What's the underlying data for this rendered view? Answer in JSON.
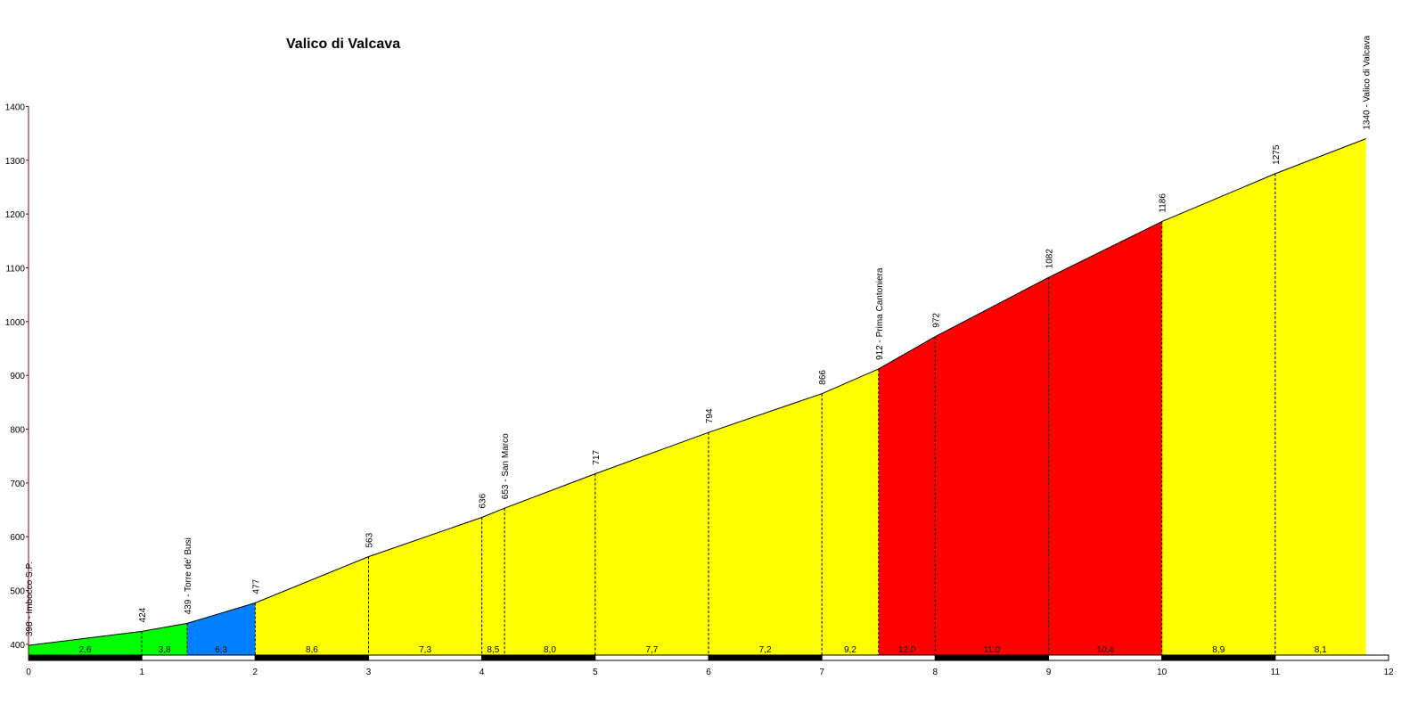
{
  "chart_data": {
    "type": "area",
    "title": "Valico di Valcava",
    "xlabel": "",
    "ylabel": "",
    "xlim": [
      0,
      12
    ],
    "ylim": [
      380,
      1400
    ],
    "x_ticks": [
      0,
      1,
      2,
      3,
      4,
      5,
      6,
      7,
      8,
      9,
      10,
      11,
      12
    ],
    "y_ticks": [
      400,
      500,
      600,
      700,
      800,
      900,
      1000,
      1100,
      1200,
      1300,
      1400
    ],
    "grid": false,
    "points": [
      {
        "x": 0,
        "y": 398,
        "label": "398 - Imbocco S.P."
      },
      {
        "x": 1,
        "y": 424,
        "label": "424"
      },
      {
        "x": 1.4,
        "y": 439,
        "label": "439 - Torre de' Busi"
      },
      {
        "x": 2,
        "y": 477,
        "label": "477"
      },
      {
        "x": 3,
        "y": 563,
        "label": "563"
      },
      {
        "x": 4,
        "y": 636,
        "label": "636"
      },
      {
        "x": 4.2,
        "y": 653,
        "label": "653 - San Marco"
      },
      {
        "x": 5,
        "y": 717,
        "label": "717"
      },
      {
        "x": 6,
        "y": 794,
        "label": "794"
      },
      {
        "x": 7,
        "y": 866,
        "label": "866"
      },
      {
        "x": 7.5,
        "y": 912,
        "label": "912 - Prima Cantoniera"
      },
      {
        "x": 8,
        "y": 972,
        "label": "972"
      },
      {
        "x": 9,
        "y": 1082,
        "label": "1082"
      },
      {
        "x": 10,
        "y": 1186,
        "label": "1186"
      },
      {
        "x": 11,
        "y": 1275,
        "label": "1275"
      },
      {
        "x": 11.8,
        "y": 1340,
        "label": "1340 - Valico di Valcava"
      }
    ],
    "segments": [
      {
        "from": 0,
        "to": 1,
        "gradient": "2,6",
        "color": "#00ff00"
      },
      {
        "from": 1,
        "to": 1.4,
        "gradient": "3,8",
        "color": "#00ff00"
      },
      {
        "from": 1.4,
        "to": 2,
        "gradient": "6,3",
        "color": "#0080ff"
      },
      {
        "from": 2,
        "to": 3,
        "gradient": "8,6",
        "color": "#ffff00"
      },
      {
        "from": 3,
        "to": 4,
        "gradient": "7,3",
        "color": "#ffff00"
      },
      {
        "from": 4,
        "to": 4.2,
        "gradient": "8,5",
        "color": "#ffff00"
      },
      {
        "from": 4.2,
        "to": 5,
        "gradient": "8,0",
        "color": "#ffff00"
      },
      {
        "from": 5,
        "to": 6,
        "gradient": "7,7",
        "color": "#ffff00"
      },
      {
        "from": 6,
        "to": 7,
        "gradient": "7,2",
        "color": "#ffff00"
      },
      {
        "from": 7,
        "to": 7.5,
        "gradient": "9,2",
        "color": "#ffff00"
      },
      {
        "from": 7.5,
        "to": 8,
        "gradient": "12,0",
        "color": "#ff0000"
      },
      {
        "from": 8,
        "to": 9,
        "gradient": "11,0",
        "color": "#ff0000"
      },
      {
        "from": 9,
        "to": 10,
        "gradient": "10,4",
        "color": "#ff0000"
      },
      {
        "from": 10,
        "to": 11,
        "gradient": "8,9",
        "color": "#ffff00"
      },
      {
        "from": 11,
        "to": 11.8,
        "gradient": "8,1",
        "color": "#ffff00"
      }
    ],
    "colors": {
      "axis_y": "#800000",
      "outline": "#000000"
    }
  }
}
